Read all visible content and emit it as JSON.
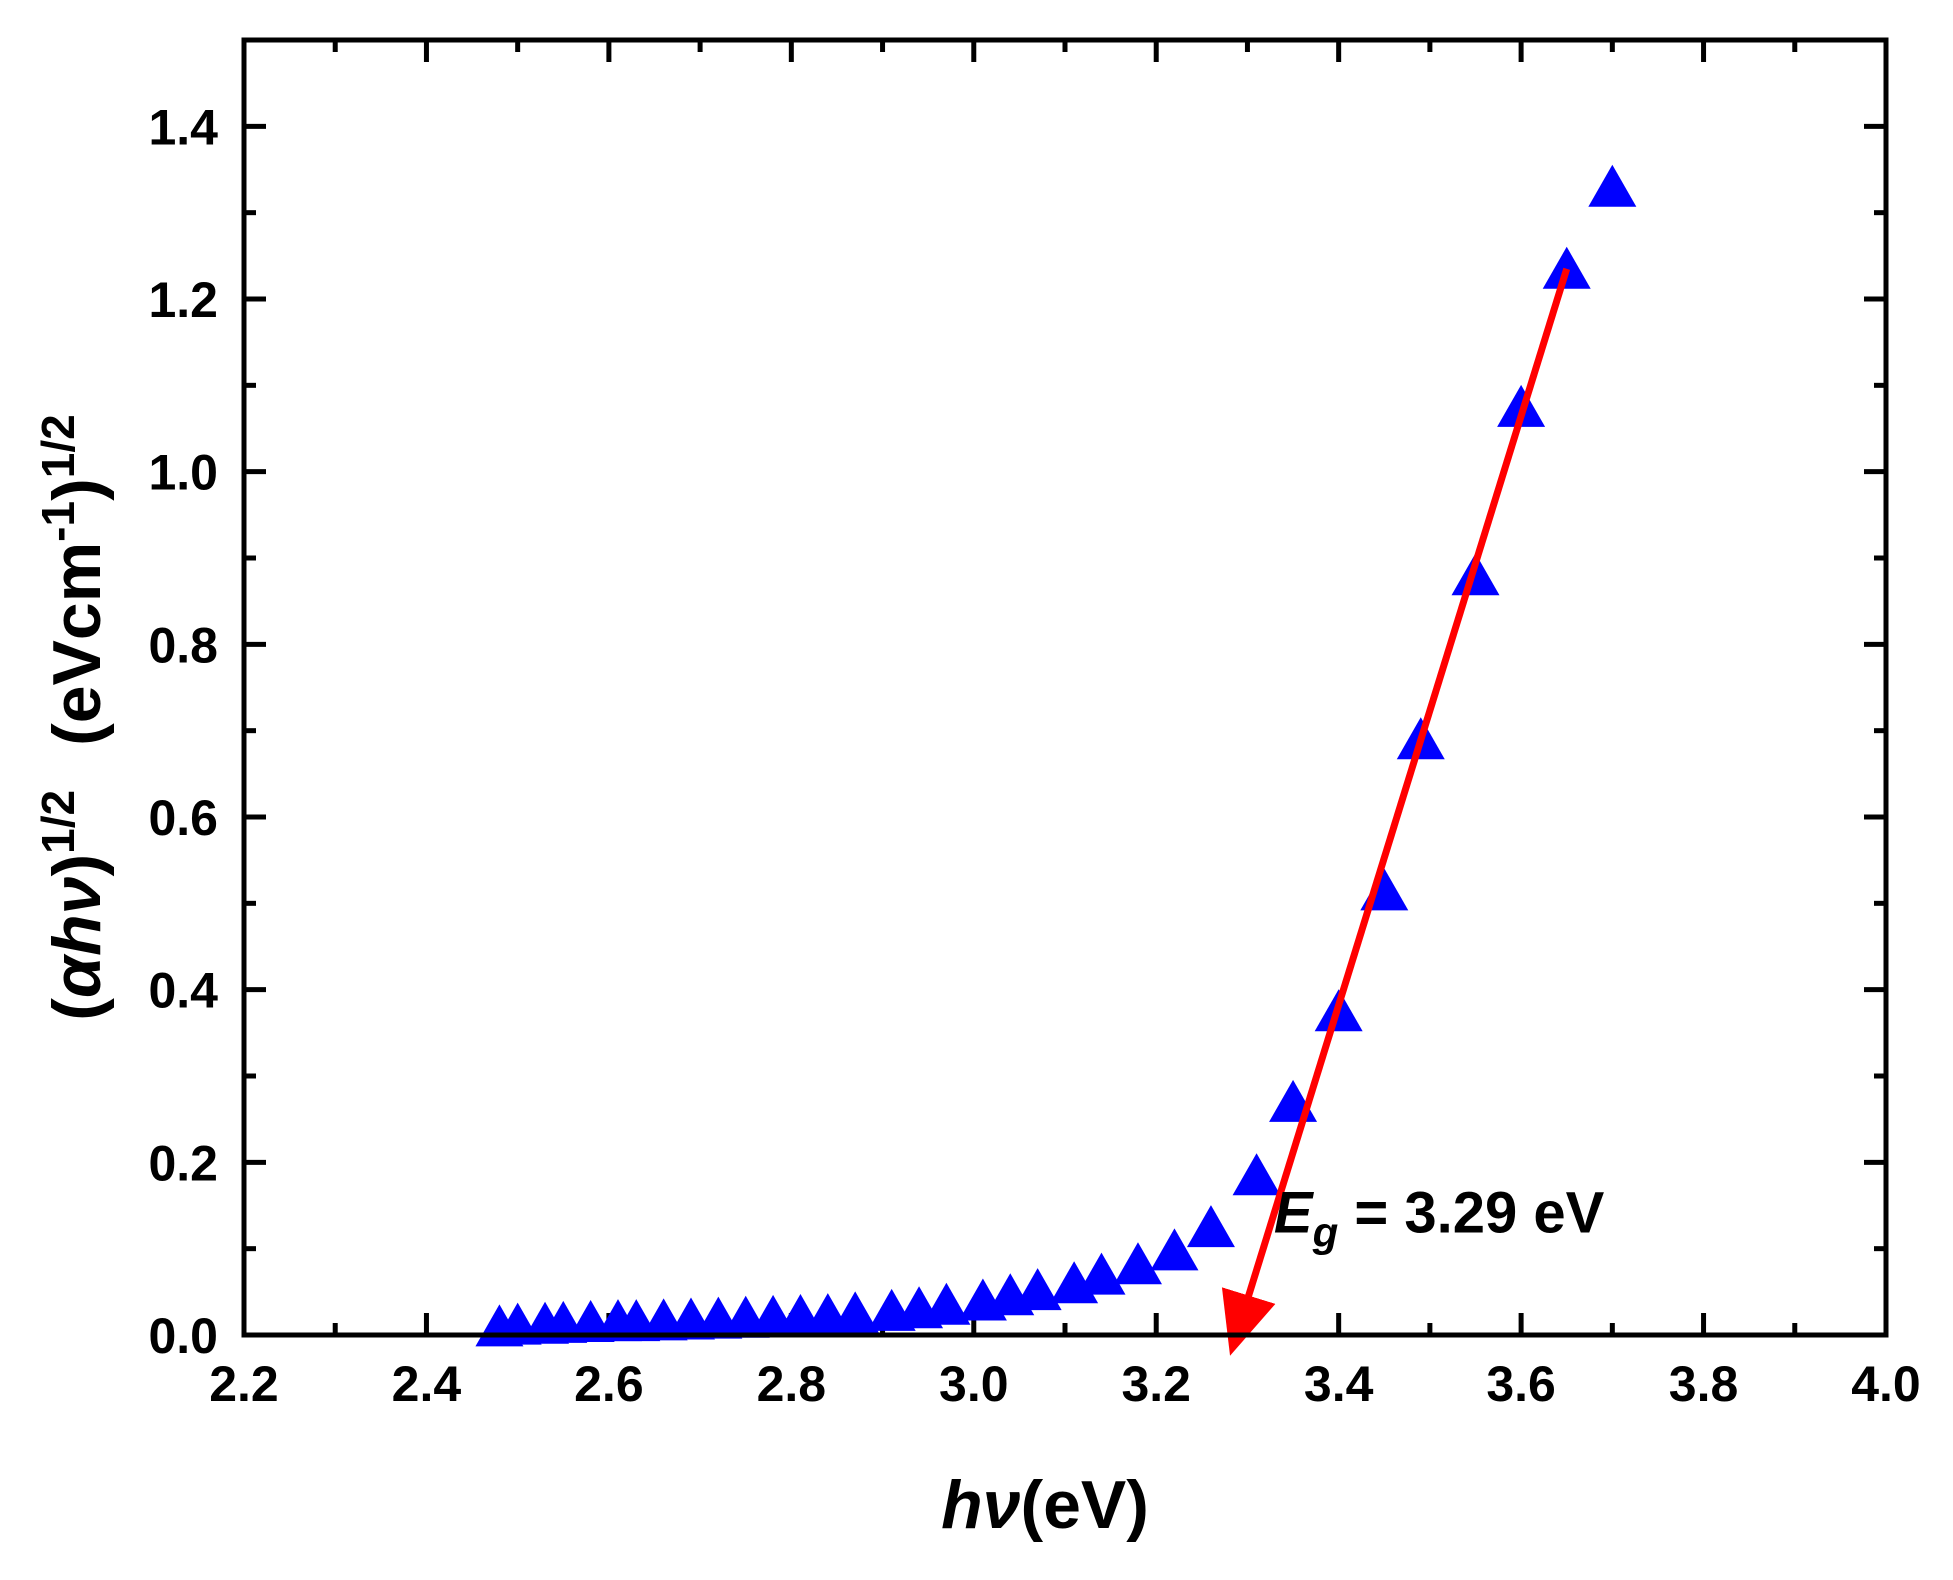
{
  "chart_data": {
    "type": "scatter",
    "title": "",
    "xlabel": {
      "symbol": "hν",
      "unit": "(eV)"
    },
    "ylabel": {
      "prefix": "(",
      "symbol": "αhν",
      "suffix": ")",
      "exponent": "1/2",
      "unit_open": "(eVcm",
      "unit_exp": "-1",
      "unit_close": ")",
      "unit_exponent": "1/2"
    },
    "xlim": [
      2.2,
      4.0
    ],
    "ylim": [
      0.0,
      1.5
    ],
    "x_ticks": [
      2.2,
      2.4,
      2.6,
      2.8,
      3.0,
      3.2,
      3.4,
      3.6,
      3.8,
      4.0
    ],
    "x_tick_labels": [
      "2.2",
      "2.4",
      "2.6",
      "2.8",
      "3.0",
      "3.2",
      "3.4",
      "3.6",
      "3.8",
      "4.0"
    ],
    "y_ticks": [
      0.0,
      0.2,
      0.4,
      0.6,
      0.8,
      1.0,
      1.2,
      1.4
    ],
    "y_tick_labels": [
      "0.0",
      "0.2",
      "0.4",
      "0.6",
      "0.8",
      "1.0",
      "1.2",
      "1.4"
    ],
    "grid": false,
    "series": [
      {
        "name": "data",
        "marker": "triangle-up",
        "color": "#0000ff",
        "x": [
          2.48,
          2.5,
          2.53,
          2.55,
          2.58,
          2.61,
          2.63,
          2.66,
          2.69,
          2.72,
          2.75,
          2.78,
          2.81,
          2.84,
          2.87,
          2.91,
          2.94,
          2.97,
          3.01,
          3.04,
          3.07,
          3.11,
          3.14,
          3.18,
          3.22,
          3.26,
          3.31,
          3.35,
          3.4,
          3.45,
          3.49,
          3.55,
          3.6,
          3.65,
          3.7
        ],
        "y": [
          0.01,
          0.012,
          0.013,
          0.014,
          0.015,
          0.016,
          0.016,
          0.017,
          0.018,
          0.019,
          0.02,
          0.021,
          0.022,
          0.023,
          0.025,
          0.028,
          0.031,
          0.035,
          0.04,
          0.046,
          0.052,
          0.06,
          0.07,
          0.082,
          0.098,
          0.125,
          0.185,
          0.27,
          0.375,
          0.515,
          0.69,
          0.88,
          1.075,
          1.235,
          1.33
        ]
      }
    ],
    "fit_line": {
      "color": "#ff0000",
      "from": [
        3.65,
        1.235
      ],
      "to": [
        3.29,
        0.0
      ],
      "arrow": "end"
    },
    "annotations": [
      {
        "symbol": "E",
        "subscript": "g",
        "text": " = 3.29 eV",
        "x": 3.34,
        "y": 0.2
      }
    ]
  }
}
